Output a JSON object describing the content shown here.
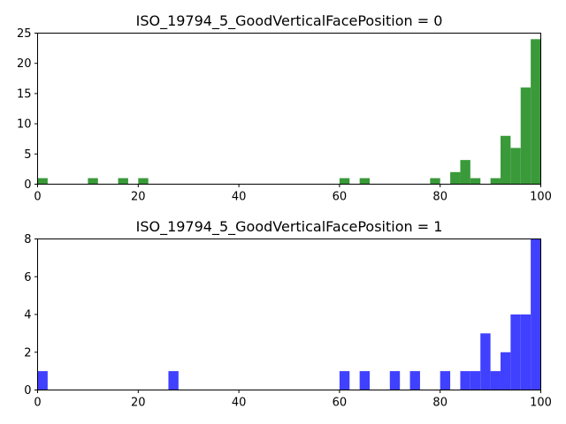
{
  "chart_data": [
    {
      "type": "bar",
      "title": "ISO_19794_5_GoodVerticalFacePosition = 0",
      "xlabel": "",
      "ylabel": "",
      "xlim": [
        0,
        100
      ],
      "ylim": [
        0,
        25
      ],
      "xticks": [
        "0",
        "20",
        "40",
        "60",
        "80",
        "100"
      ],
      "yticks": [
        "0",
        "5",
        "10",
        "15",
        "20",
        "25"
      ],
      "bin_width": 2,
      "color": "#3a9a3a",
      "bins": [
        {
          "x0": 0,
          "count": 1
        },
        {
          "x0": 10,
          "count": 1
        },
        {
          "x0": 16,
          "count": 1
        },
        {
          "x0": 20,
          "count": 1
        },
        {
          "x0": 60,
          "count": 1
        },
        {
          "x0": 64,
          "count": 1
        },
        {
          "x0": 78,
          "count": 1
        },
        {
          "x0": 82,
          "count": 2
        },
        {
          "x0": 84,
          "count": 4
        },
        {
          "x0": 86,
          "count": 1
        },
        {
          "x0": 90,
          "count": 1
        },
        {
          "x0": 92,
          "count": 8
        },
        {
          "x0": 94,
          "count": 6
        },
        {
          "x0": 96,
          "count": 16
        },
        {
          "x0": 98,
          "count": 24
        }
      ]
    },
    {
      "type": "bar",
      "title": "ISO_19794_5_GoodVerticalFacePosition = 1",
      "xlabel": "",
      "ylabel": "",
      "xlim": [
        0,
        100
      ],
      "ylim": [
        0,
        8
      ],
      "xticks": [
        "0",
        "20",
        "40",
        "60",
        "80",
        "100"
      ],
      "yticks": [
        "0",
        "2",
        "4",
        "6",
        "8"
      ],
      "bin_width": 2,
      "color": "#4040ff",
      "bins": [
        {
          "x0": 0,
          "count": 1
        },
        {
          "x0": 26,
          "count": 1
        },
        {
          "x0": 60,
          "count": 1
        },
        {
          "x0": 64,
          "count": 1
        },
        {
          "x0": 70,
          "count": 1
        },
        {
          "x0": 74,
          "count": 1
        },
        {
          "x0": 80,
          "count": 1
        },
        {
          "x0": 84,
          "count": 1
        },
        {
          "x0": 86,
          "count": 1
        },
        {
          "x0": 88,
          "count": 3
        },
        {
          "x0": 90,
          "count": 1
        },
        {
          "x0": 92,
          "count": 2
        },
        {
          "x0": 94,
          "count": 4
        },
        {
          "x0": 96,
          "count": 4
        },
        {
          "x0": 98,
          "count": 8
        }
      ]
    }
  ]
}
